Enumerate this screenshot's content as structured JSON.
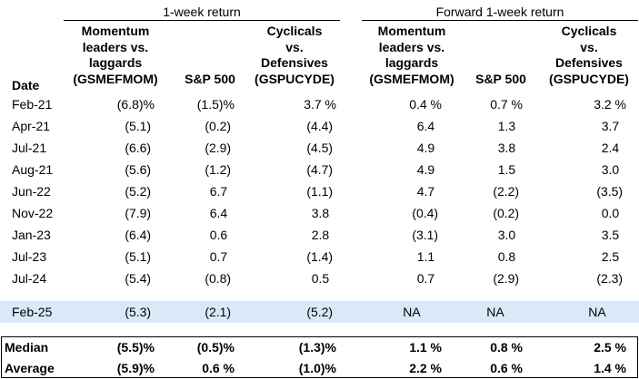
{
  "group_headers": [
    "1-week return",
    "Forward 1-week return"
  ],
  "col_headers": {
    "date": "Date",
    "momentum": [
      "Momentum",
      "leaders vs.",
      "laggards",
      "(GSMEFMOM)"
    ],
    "sp500": "S&P 500",
    "cyclicals": [
      "Cyclicals",
      "vs.",
      "Defensives",
      "(GSPUCYDE)"
    ]
  },
  "rows": [
    {
      "date": "Feb-21",
      "vals": [
        "(6.8)%",
        "(1.5)%",
        "3.7 %",
        "0.4 %",
        "0.7 %",
        "3.2 %"
      ]
    },
    {
      "date": "Apr-21",
      "vals": [
        "(5.1) ",
        "(0.2) ",
        "(4.4) ",
        "6.4  ",
        "1.3  ",
        "3.7  "
      ]
    },
    {
      "date": "Jul-21",
      "vals": [
        "(6.6) ",
        "(2.9) ",
        "(4.5) ",
        "4.9  ",
        "3.8  ",
        "2.4  "
      ]
    },
    {
      "date": "Aug-21",
      "vals": [
        "(5.6) ",
        "(1.2) ",
        "(4.7) ",
        "4.9  ",
        "1.5  ",
        "3.0  "
      ]
    },
    {
      "date": "Jun-22",
      "vals": [
        "(5.2) ",
        "6.7  ",
        "(1.1) ",
        "4.7  ",
        "(2.2) ",
        "(3.5) "
      ]
    },
    {
      "date": "Nov-22",
      "vals": [
        "(7.9) ",
        "6.4  ",
        "3.8  ",
        "(0.4) ",
        "(0.2) ",
        "0.0  "
      ]
    },
    {
      "date": "Jan-23",
      "vals": [
        "(6.4) ",
        "0.6  ",
        "2.8  ",
        "(3.1) ",
        "3.0  ",
        "3.5  "
      ]
    },
    {
      "date": "Jul-23",
      "vals": [
        "(5.1) ",
        "0.7  ",
        "(1.4) ",
        "1.1  ",
        "0.8  ",
        "2.5  "
      ]
    },
    {
      "date": "Jul-24",
      "vals": [
        "(5.4) ",
        "(0.8) ",
        "0.5  ",
        "0.7  ",
        "(2.9) ",
        "(2.3) "
      ]
    },
    {
      "date": "Feb-25",
      "vals": [
        "(5.3) ",
        "(2.1) ",
        "(5.2) ",
        "NA",
        "NA",
        "NA"
      ],
      "highlight": true
    }
  ],
  "summary": [
    {
      "label": "Median",
      "vals": [
        "(5.5)%",
        "(0.5)%",
        "(1.3)%",
        "1.1 %",
        "0.8 %",
        "2.5 %"
      ]
    },
    {
      "label": "Average",
      "vals": [
        "(5.9)%",
        "0.6 %",
        "(1.0)%",
        "2.2 %",
        "0.6 %",
        "1.4 %"
      ]
    }
  ],
  "colors": {
    "highlight": "#dbe8f7",
    "text": "#000000",
    "rule": "#000000"
  }
}
